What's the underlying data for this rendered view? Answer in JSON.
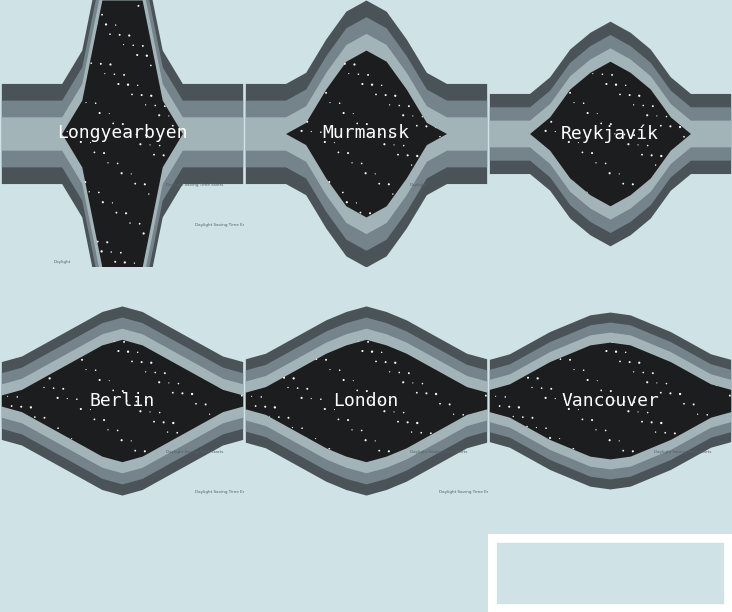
{
  "chart_data": [
    {
      "type": "area",
      "title": "Longyearbyen",
      "tick_labels": false,
      "xlim": [
        -182,
        182
      ],
      "ylim": [
        -12,
        12
      ],
      "x": [
        -180,
        -150,
        -120,
        -90,
        -60,
        -30,
        0,
        30,
        60,
        90,
        120,
        150,
        180
      ],
      "night": [
        0,
        0,
        0,
        0,
        6,
        24,
        24,
        24,
        6,
        0,
        0,
        0,
        0
      ],
      "twilight": [
        1.5,
        1.5,
        1.5
      ],
      "annotations": [
        "Daylight Saving Time Starts",
        "Daylight Saving Time Ends",
        "Daylight"
      ]
    },
    {
      "type": "area",
      "title": "Murmansk",
      "tick_labels": false,
      "xlim": [
        -182,
        182
      ],
      "ylim": [
        -12,
        12
      ],
      "x": [
        -180,
        -150,
        -120,
        -90,
        -60,
        -30,
        0,
        30,
        60,
        90,
        120,
        150,
        180
      ],
      "night": [
        0,
        0,
        0,
        2,
        8,
        13,
        15,
        13,
        8,
        2,
        0,
        0,
        0
      ],
      "twilight": [
        1.5,
        1.5,
        1.5
      ],
      "annotations": [
        "Daylight"
      ]
    },
    {
      "type": "area",
      "title": "Reykjavík",
      "tick_labels": false,
      "xlim": [
        -182,
        182
      ],
      "ylim": [
        -12,
        12
      ],
      "x": [
        -180,
        -150,
        -120,
        -90,
        -60,
        -30,
        0,
        30,
        60,
        90,
        120,
        150,
        180
      ],
      "night": [
        0,
        0,
        0,
        3,
        8,
        11,
        13,
        11,
        8,
        3,
        0,
        0,
        0
      ],
      "twilight": [
        1.2,
        1.2,
        1.2
      ],
      "annotations": []
    },
    {
      "type": "area",
      "title": "Berlin",
      "tick_labels": false,
      "xlim": [
        -182,
        182
      ],
      "ylim": [
        -12,
        12
      ],
      "x": [
        -180,
        -150,
        -120,
        -90,
        -60,
        -30,
        0,
        30,
        60,
        90,
        120,
        150,
        180
      ],
      "night": [
        1,
        2,
        4,
        6,
        8,
        10,
        11,
        10,
        8,
        6,
        4,
        2,
        1
      ],
      "twilight": [
        1,
        1,
        1
      ],
      "annotations": [
        "Daylight Saving Time Starts",
        "Daylight Saving Time Ends"
      ]
    },
    {
      "type": "area",
      "title": "London",
      "tick_labels": false,
      "xlim": [
        -182,
        182
      ],
      "ylim": [
        -12,
        12
      ],
      "x": [
        -180,
        -150,
        -120,
        -90,
        -60,
        -30,
        0,
        30,
        60,
        90,
        120,
        150,
        180
      ],
      "night": [
        1.5,
        2.5,
        4.5,
        6.5,
        8.5,
        10,
        11,
        10,
        8.5,
        6.5,
        4.5,
        2.5,
        1.5
      ],
      "twilight": [
        1,
        1,
        1
      ],
      "annotations": [
        "Daylight Saving Time Starts",
        "Daylight Saving Time Ends"
      ]
    },
    {
      "type": "area",
      "title": "Vancouver",
      "tick_labels": false,
      "xlim": [
        -182,
        182
      ],
      "ylim": [
        -12,
        12
      ],
      "x": [
        -180,
        -150,
        -120,
        -90,
        -60,
        -30,
        0,
        30,
        60,
        90,
        120,
        150,
        180
      ],
      "night": [
        2,
        3,
        5,
        7,
        8.5,
        10,
        10.5,
        10,
        8.5,
        7,
        5,
        3,
        2
      ],
      "twilight": [
        0.9,
        0.9,
        0.9
      ],
      "annotations": [
        "Daylight Saving Time Starts"
      ]
    }
  ]
}
